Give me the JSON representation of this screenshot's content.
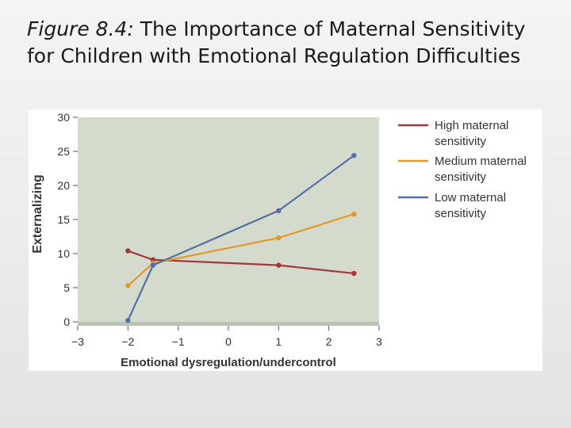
{
  "slide": {
    "figure_label": "Figure 8.4:",
    "title": "The Importance of Maternal Sensitivity for Children with Emotional Regulation Difficulties"
  },
  "colors": {
    "plot_bg": "#d4dbcd",
    "high": "#a1383a",
    "medium": "#df9a2a",
    "low": "#5470a6"
  },
  "chart_data": {
    "type": "line",
    "xlabel": "Emotional dysregulation/undercontrol",
    "ylabel": "Externalizing",
    "xlim": [
      -3,
      3
    ],
    "ylim": [
      0,
      30
    ],
    "x_ticks": [
      "−3",
      "−2",
      "−1",
      "0",
      "1",
      "2",
      "3"
    ],
    "y_ticks": [
      "0",
      "5",
      "10",
      "15",
      "20",
      "25",
      "30"
    ],
    "grid": false,
    "legend_position": "right",
    "series": [
      {
        "name": "High maternal sensitivity",
        "legend_lines": [
          "High maternal",
          "sensitivity"
        ],
        "color": "#a1383a",
        "x": [
          -2,
          -1.5,
          1,
          2.5
        ],
        "y": [
          10.4,
          9.1,
          8.3,
          7.1
        ]
      },
      {
        "name": "Medium maternal sensitivity",
        "legend_lines": [
          "Medium maternal",
          "sensitivity"
        ],
        "color": "#df9a2a",
        "x": [
          -2,
          -1.5,
          1,
          2.5
        ],
        "y": [
          5.3,
          8.6,
          12.3,
          15.8
        ]
      },
      {
        "name": "Low maternal sensitivity",
        "legend_lines": [
          "Low maternal",
          "sensitivity"
        ],
        "color": "#5470a6",
        "x": [
          -2,
          -1.5,
          1,
          2.5
        ],
        "y": [
          0.2,
          8.3,
          16.3,
          24.4
        ]
      }
    ]
  }
}
